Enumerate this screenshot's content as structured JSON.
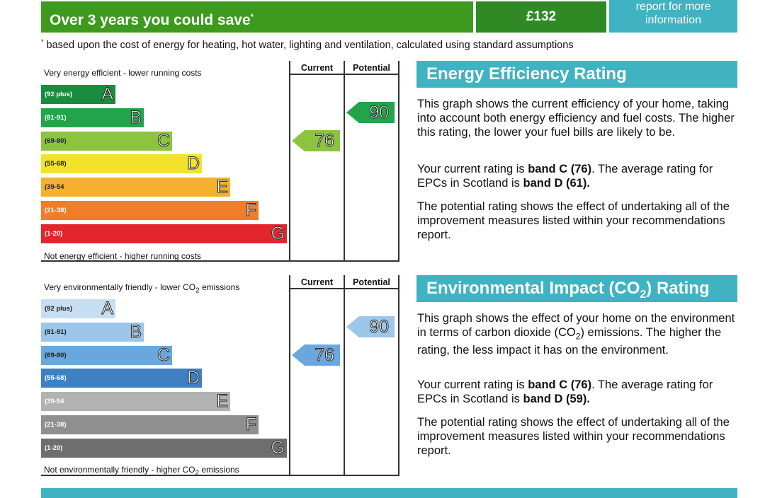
{
  "savings": {
    "label": "Over 3 years you could save",
    "marker": "*",
    "amount": "£132",
    "report_link": "report for more information",
    "footnote_marker": "*",
    "footnote": "based upon the cost of energy for heating, hot water, lighting and ventilation, calculated using standard assumptions"
  },
  "energy": {
    "top_caption": "Very energy efficient - lower running costs",
    "bottom_caption": "Not energy efficient - higher running costs",
    "col_current": "Current",
    "col_potential": "Potential",
    "bands": [
      {
        "range": "(92 plus)",
        "letter": "A",
        "color": "#1a8c3f"
      },
      {
        "range": "(81-91)",
        "letter": "B",
        "color": "#21a44a"
      },
      {
        "range": "(69-80)",
        "letter": "C",
        "color": "#8dc43f"
      },
      {
        "range": "(55-68)",
        "letter": "D",
        "color": "#f2e32a"
      },
      {
        "range": "(39-54",
        "letter": "E",
        "color": "#f5b12e"
      },
      {
        "range": "(21-38)",
        "letter": "F",
        "color": "#ef7d29"
      },
      {
        "range": "(1-20)",
        "letter": "G",
        "color": "#e3262b"
      }
    ],
    "current": {
      "value": "76",
      "color": "#8dc43f"
    },
    "potential": {
      "value": "90",
      "color": "#21a44a"
    },
    "heading": "Energy Efficiency Rating",
    "p1": "This graph shows the current efficiency of your home, taking into account both energy efficiency and fuel costs. The higher this rating, the lower your fuel bills are likely to be.",
    "p2_pre": "Your current rating is ",
    "p2_b1": "band C (76)",
    "p2_mid": ". The average rating for EPCs in Scotland is ",
    "p2_b2": "band D (61).",
    "p3": "The potential rating shows the effect of undertaking all of the improvement measures listed within your recommendations report."
  },
  "environment": {
    "top_caption_pre": "Very environmentally friendly - lower CO",
    "top_caption_sub": "2",
    "top_caption_post": " emissions",
    "bottom_caption_pre": "Not environmentally friendly - higher CO",
    "bottom_caption_sub": "2",
    "bottom_caption_post": " emissions",
    "col_current": "Current",
    "col_potential": "Potential",
    "bands": [
      {
        "range": "(92 plus)",
        "letter": "A",
        "color": "#c7def2"
      },
      {
        "range": "(81-91)",
        "letter": "B",
        "color": "#9cc6ea"
      },
      {
        "range": "(69-80)",
        "letter": "C",
        "color": "#6aa7dd"
      },
      {
        "range": "(55-68)",
        "letter": "D",
        "color": "#3f7fc4"
      },
      {
        "range": "(39-54",
        "letter": "E",
        "color": "#b2b2b2"
      },
      {
        "range": "(21-38)",
        "letter": "F",
        "color": "#8f8f8f"
      },
      {
        "range": "(1-20)",
        "letter": "G",
        "color": "#6e6e6e"
      }
    ],
    "current": {
      "value": "76",
      "color": "#6aa7dd"
    },
    "potential": {
      "value": "90",
      "color": "#9cc6ea"
    },
    "heading_pre": "Environmental Impact (CO",
    "heading_sub": "2",
    "heading_post": ") Rating",
    "p1_pre": "This graph shows the effect of your home on the environment in terms of carbon dioxide (CO",
    "p1_sub": "2",
    "p1_post": ") emissions. The higher the rating, the less impact it has on the environment.",
    "p2_pre": "Your current rating is ",
    "p2_b1": "band C (76)",
    "p2_mid": ". The average rating for EPCs in Scotland is ",
    "p2_b2": "band D (59).",
    "p3": "The potential rating shows the effect of undertaking all of the improvement measures listed within your recommendations report."
  }
}
